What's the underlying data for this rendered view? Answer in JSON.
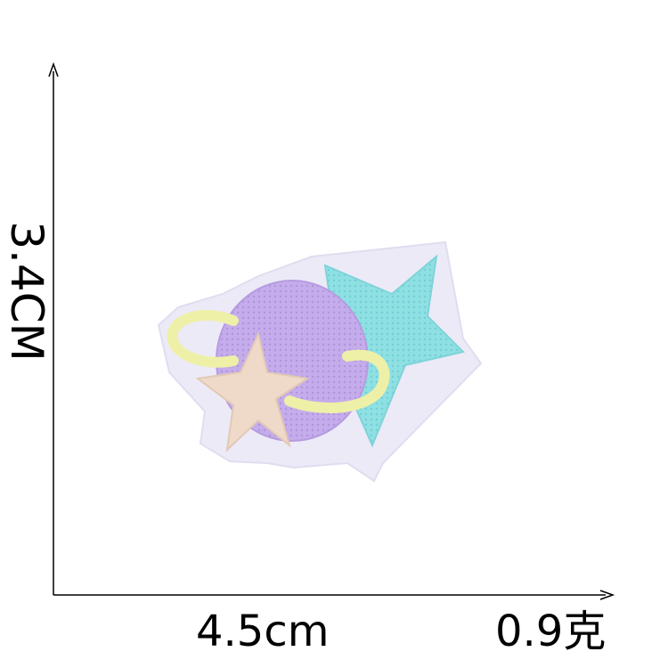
{
  "dimensions": {
    "height_label": "3.4CM",
    "width_label": "4.5cm"
  },
  "weight_label": "0.9克",
  "patch": {
    "description_icons": [
      "planet-icon",
      "ring-icon",
      "small-star-icon",
      "big-star-icon"
    ],
    "colors": {
      "felt_border": "#eceaf7",
      "planet": "#c3a9e8",
      "ring": "#eef0a8",
      "big_star": "#8fe0e3",
      "small_star": "#efd9c8"
    }
  }
}
